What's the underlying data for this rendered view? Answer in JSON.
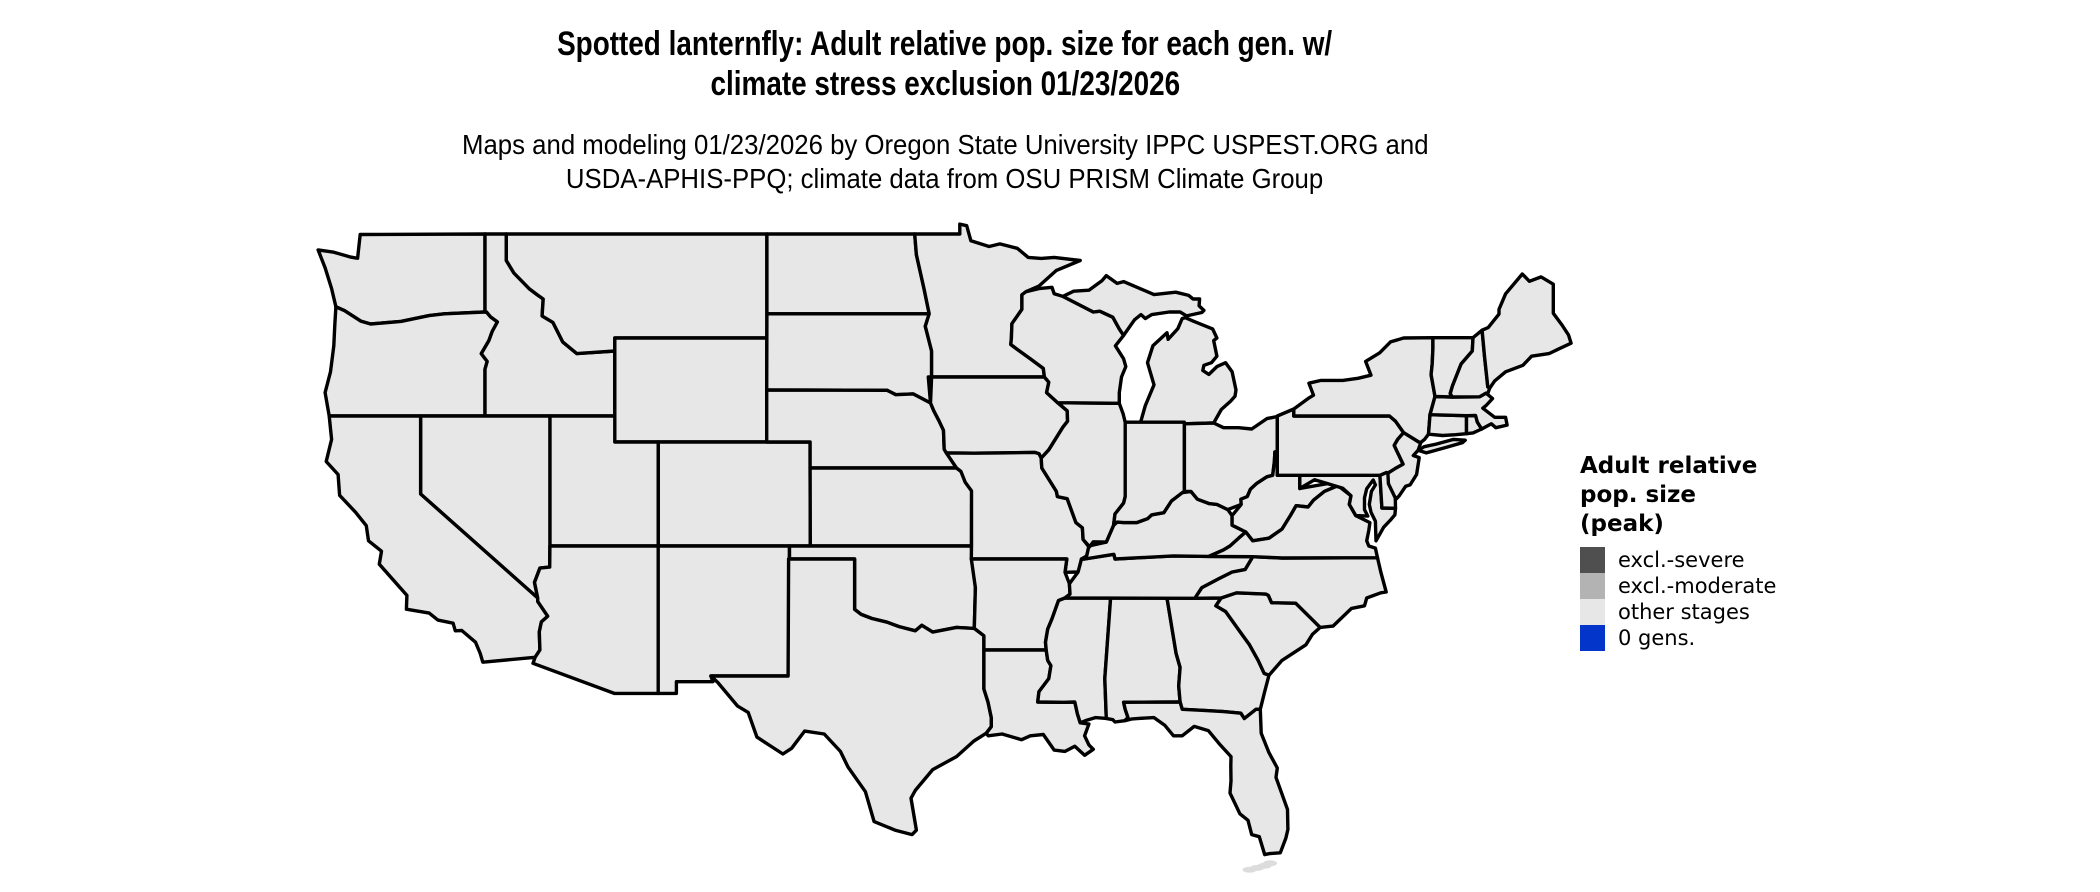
{
  "title": {
    "line1": "Spotted lanternfly: Adult relative pop. size for each gen. w/",
    "line2": "climate stress exclusion 01/23/2026"
  },
  "subtitle": {
    "line1": "Maps and modeling 01/23/2026 by Oregon State University IPPC USPEST.ORG and",
    "line2": "USDA-APHIS-PPQ; climate data from OSU PRISM Climate Group"
  },
  "legend": {
    "title_line1": "Adult relative",
    "title_line2": "pop. size",
    "title_line3": "(peak)",
    "items": [
      {
        "label": "excl.-severe",
        "color": "#4f4f4f"
      },
      {
        "label": "excl.-moderate",
        "color": "#b3b3b3"
      },
      {
        "label": "other stages",
        "color": "#e7e7e7"
      },
      {
        "label": "0 gens.",
        "color": "#0435cb"
      }
    ]
  },
  "map": {
    "area": "Continental United States",
    "state_fill": "#e7e7e7",
    "state_border": "#000000",
    "background": "#ffffff"
  }
}
